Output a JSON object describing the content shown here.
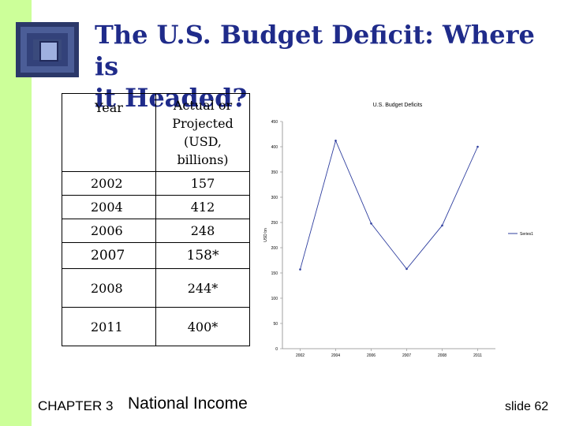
{
  "slide": {
    "title_line1": "The U.S. Budget Deficit: Where is",
    "title_line2": "it Headed?",
    "footer_chapter": "CHAPTER 3",
    "footer_title": "National Income",
    "footer_slide": "slide 62",
    "colors": {
      "accent_bar": "#ccff99",
      "title": "#1f2b8a"
    }
  },
  "table": {
    "headers": [
      "Year",
      "Actual or Projected (USD, billions)"
    ],
    "header_value_lines": [
      "Actual or",
      "Projected",
      "(USD,",
      "billions)"
    ],
    "rows": [
      {
        "year": "2002",
        "value": "157"
      },
      {
        "year": "2004",
        "value": "412"
      },
      {
        "year": "2006",
        "value": "248"
      },
      {
        "year": "2007",
        "value": "158*"
      },
      {
        "year": "2008",
        "value": "244*"
      },
      {
        "year": "2011",
        "value": "400*"
      }
    ]
  },
  "chart_data": {
    "type": "line",
    "title": "U.S. Budget Deficits",
    "xlabel": "",
    "ylabel": "USD bn",
    "categories": [
      "2002",
      "2004",
      "2006",
      "2007",
      "2008",
      "2011"
    ],
    "series": [
      {
        "name": "Series1",
        "values": [
          157,
          412,
          248,
          158,
          244,
          400
        ]
      }
    ],
    "ylim": [
      0,
      450
    ],
    "yticks": [
      0,
      50,
      100,
      150,
      200,
      250,
      300,
      350,
      400,
      450
    ],
    "grid": false,
    "legend": "right",
    "series_color": "#2f3f9f"
  }
}
